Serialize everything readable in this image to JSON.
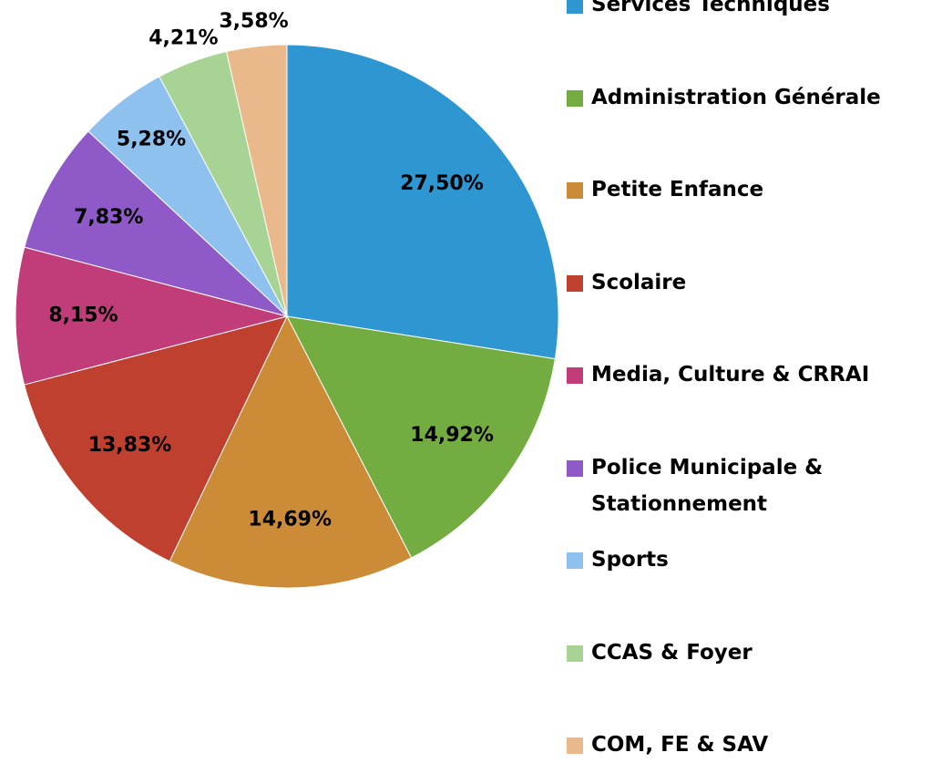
{
  "chart_data": {
    "type": "pie",
    "categories": [
      "Services Techniques",
      "Administration Générale",
      "Petite Enfance",
      "Scolaire",
      "Media, Culture & CRRAI",
      "Police Municipale & Stationnement",
      "Sports",
      "CCAS & Foyer",
      "COM, FE & SAV"
    ],
    "values": [
      27.5,
      14.92,
      14.69,
      13.83,
      8.15,
      7.83,
      5.28,
      4.21,
      3.58
    ],
    "value_labels": [
      "27,50%",
      "14,92%",
      "14,69%",
      "13,83%",
      "8,15%",
      "7,83%",
      "5,28%",
      "4,21%",
      "3,58%"
    ],
    "colors": [
      "#2e97d2",
      "#73ad41",
      "#cc8b36",
      "#c0402f",
      "#c03d79",
      "#9059c8",
      "#8fc1ee",
      "#a7d494",
      "#e9b98c"
    ],
    "legend": "right"
  }
}
